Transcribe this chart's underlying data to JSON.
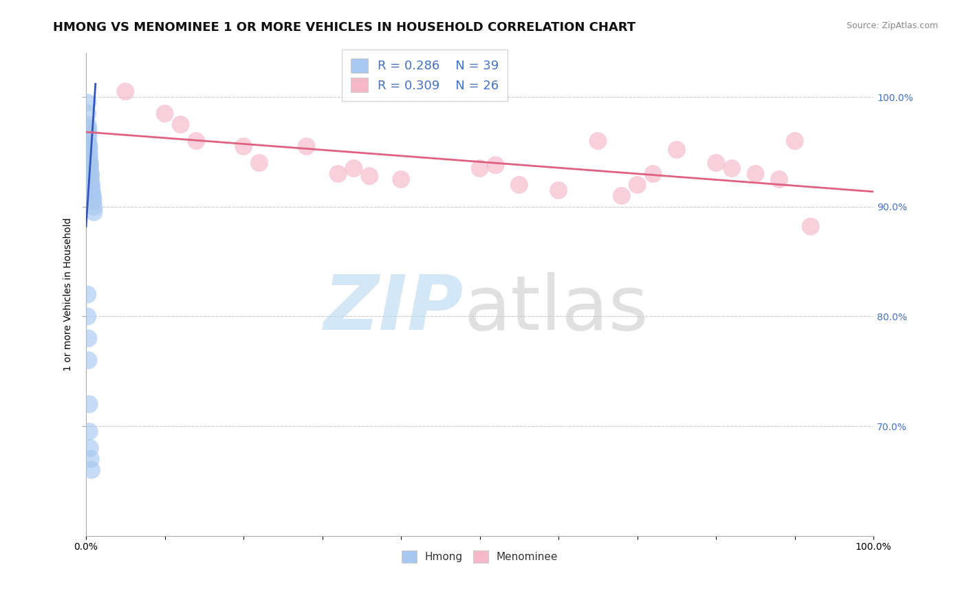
{
  "title": "HMONG VS MENOMINEE 1 OR MORE VEHICLES IN HOUSEHOLD CORRELATION CHART",
  "source": "Source: ZipAtlas.com",
  "ylabel": "1 or more Vehicles in Household",
  "xlim": [
    0.0,
    1.0
  ],
  "ylim": [
    0.6,
    1.04
  ],
  "xticks": [
    0.0,
    0.1,
    0.2,
    0.3,
    0.4,
    0.5,
    0.6,
    0.7,
    0.8,
    0.9,
    1.0
  ],
  "xticklabels": [
    "0.0%",
    "",
    "",
    "",
    "",
    "",
    "",
    "",
    "",
    "",
    "100.0%"
  ],
  "yticks_left": [],
  "yticks_right": [
    0.7,
    0.8,
    0.9,
    1.0
  ],
  "yticklabels_right": [
    "70.0%",
    "80.0%",
    "90.0%",
    "100.0%"
  ],
  "hmong_color": "#a8c8f0",
  "menominee_color": "#f5b8c8",
  "hmong_line_color": "#3355bb",
  "menominee_line_color": "#e06080",
  "legend_r_hmong": "R = 0.286",
  "legend_n_hmong": "N = 39",
  "legend_r_menominee": "R = 0.309",
  "legend_n_menominee": "N = 26",
  "hmong_x": [
    0.002,
    0.002,
    0.002,
    0.003,
    0.003,
    0.003,
    0.003,
    0.003,
    0.004,
    0.004,
    0.004,
    0.004,
    0.004,
    0.005,
    0.005,
    0.005,
    0.005,
    0.006,
    0.006,
    0.006,
    0.006,
    0.007,
    0.007,
    0.007,
    0.008,
    0.008,
    0.009,
    0.009,
    0.01,
    0.01,
    0.002,
    0.002,
    0.003,
    0.003,
    0.004,
    0.004,
    0.005,
    0.006,
    0.007
  ],
  "hmong_y": [
    0.995,
    0.985,
    0.975,
    0.972,
    0.968,
    0.965,
    0.96,
    0.956,
    0.955,
    0.952,
    0.948,
    0.945,
    0.942,
    0.94,
    0.938,
    0.935,
    0.932,
    0.93,
    0.928,
    0.925,
    0.922,
    0.92,
    0.918,
    0.915,
    0.912,
    0.91,
    0.908,
    0.905,
    0.9,
    0.895,
    0.82,
    0.8,
    0.78,
    0.76,
    0.72,
    0.695,
    0.68,
    0.67,
    0.66
  ],
  "menominee_x": [
    0.05,
    0.1,
    0.12,
    0.14,
    0.2,
    0.22,
    0.28,
    0.32,
    0.34,
    0.36,
    0.4,
    0.5,
    0.52,
    0.55,
    0.6,
    0.65,
    0.68,
    0.7,
    0.72,
    0.75,
    0.8,
    0.82,
    0.85,
    0.88,
    0.9,
    0.92
  ],
  "menominee_y": [
    1.005,
    0.985,
    0.975,
    0.96,
    0.955,
    0.94,
    0.955,
    0.93,
    0.935,
    0.928,
    0.925,
    0.935,
    0.938,
    0.92,
    0.915,
    0.96,
    0.91,
    0.92,
    0.93,
    0.952,
    0.94,
    0.935,
    0.93,
    0.925,
    0.96,
    0.882
  ],
  "background_color": "#ffffff",
  "grid_color": "#cccccc",
  "title_fontsize": 13,
  "axis_label_fontsize": 10,
  "tick_fontsize": 10,
  "right_ytick_color": "#4472c4"
}
